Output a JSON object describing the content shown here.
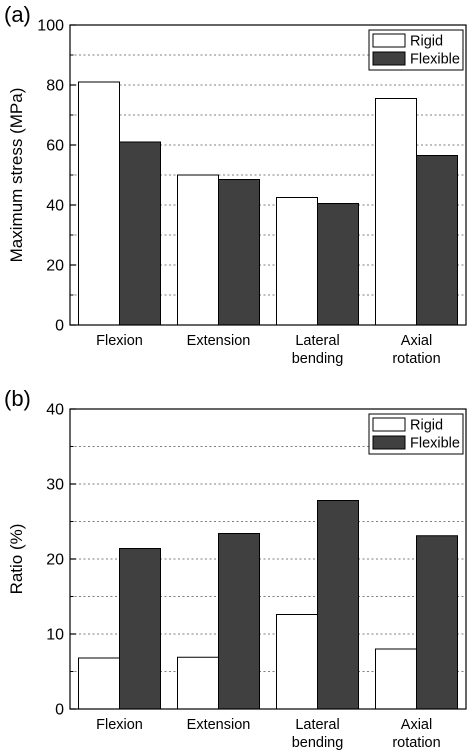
{
  "chart_data": [
    {
      "panel_label": "(a)",
      "type": "bar",
      "categories": [
        [
          "Flexion"
        ],
        [
          "Extension"
        ],
        [
          "Lateral",
          "bending"
        ],
        [
          "Axial",
          "rotation"
        ]
      ],
      "series": [
        {
          "name": "Rigid",
          "values": [
            81,
            50,
            42.5,
            75.5
          ],
          "color": "#ffffff"
        },
        {
          "name": "Flexible",
          "values": [
            61,
            48.5,
            40.5,
            56.5
          ],
          "color": "#404040"
        }
      ],
      "ylabel": "Maximum stress (MPa)",
      "ylim": [
        0,
        100
      ],
      "yticks": [
        0,
        20,
        40,
        60,
        80,
        100
      ],
      "grid": "dotted-horizontal",
      "legend_position": "top-right"
    },
    {
      "panel_label": "(b)",
      "type": "bar",
      "categories": [
        [
          "Flexion"
        ],
        [
          "Extension"
        ],
        [
          "Lateral",
          "bending"
        ],
        [
          "Axial",
          "rotation"
        ]
      ],
      "series": [
        {
          "name": "Rigid",
          "values": [
            6.8,
            6.9,
            12.6,
            8.0
          ],
          "color": "#ffffff"
        },
        {
          "name": "Flexible",
          "values": [
            21.4,
            23.4,
            27.8,
            23.1
          ],
          "color": "#404040"
        }
      ],
      "ylabel": "Ratio (%)",
      "ylim": [
        0,
        40
      ],
      "yticks": [
        0,
        10,
        20,
        30,
        40
      ],
      "grid": "dotted-horizontal",
      "legend_position": "top-right"
    }
  ]
}
